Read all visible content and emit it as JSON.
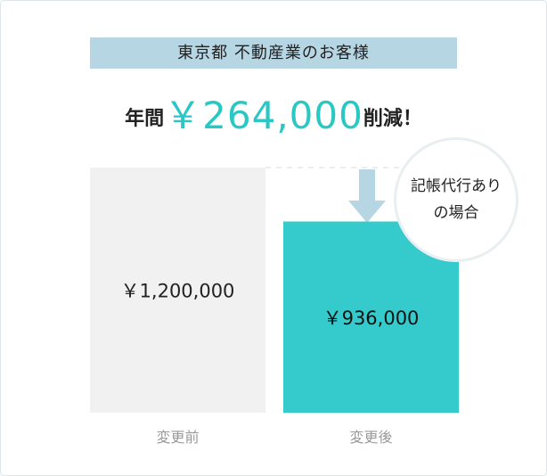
{
  "banner": {
    "text": "東京都 不動産業のお客様"
  },
  "headline": {
    "prefix": "年間",
    "amount": "￥264,000",
    "suffix": "削減！"
  },
  "badge": {
    "line1": "記帳代行あり",
    "line2": "の場合"
  },
  "colors": {
    "before_bar": "#f1f1f1",
    "after_bar": "#35cbcc",
    "accent": "#2bc7c4",
    "arrow": "#b7d6e4",
    "banner_bg": "#b7d6e4"
  },
  "chart_data": {
    "type": "bar",
    "categories": [
      "変更前",
      "変更後"
    ],
    "values": [
      1200000,
      936000
    ],
    "value_labels": [
      "￥1,200,000",
      "￥936,000"
    ],
    "ylim": [
      0,
      1200000
    ],
    "grid": false,
    "legend": "none"
  }
}
